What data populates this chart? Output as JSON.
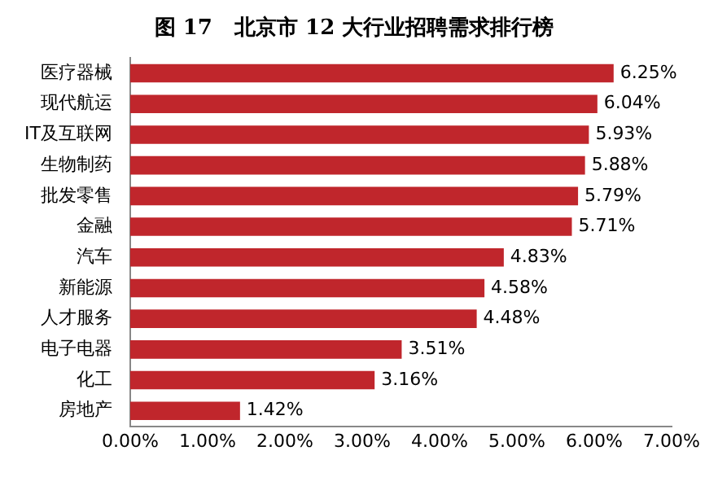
{
  "chart_data": {
    "type": "bar",
    "orientation": "horizontal",
    "title": "图 17   北京市 12 大行业招聘需求排行榜",
    "categories": [
      "医疗器械",
      "现代航运",
      "IT及互联网",
      "生物制药",
      "批发零售",
      "金融",
      "汽车",
      "新能源",
      "人才服务",
      "电子电器",
      "化工",
      "房地产"
    ],
    "values": [
      6.25,
      6.04,
      5.93,
      5.88,
      5.79,
      5.71,
      4.83,
      4.58,
      4.48,
      3.51,
      3.16,
      1.42
    ],
    "value_labels": [
      "6.25%",
      "6.04%",
      "5.93%",
      "5.88%",
      "5.79%",
      "5.71%",
      "4.83%",
      "4.58%",
      "4.48%",
      "3.51%",
      "3.16%",
      "1.42%"
    ],
    "color": "#c0262c",
    "xlim": [
      0,
      7
    ],
    "xticks": [
      {
        "value": 0,
        "label": "0.00%"
      },
      {
        "value": 1,
        "label": "1.00%"
      },
      {
        "value": 2,
        "label": "2.00%"
      },
      {
        "value": 3,
        "label": "3.00%"
      },
      {
        "value": 4,
        "label": "4.00%"
      },
      {
        "value": 5,
        "label": "5.00%"
      },
      {
        "value": 6,
        "label": "6.00%"
      },
      {
        "value": 7,
        "label": "7.00%"
      }
    ],
    "grid": false,
    "legend": false
  }
}
